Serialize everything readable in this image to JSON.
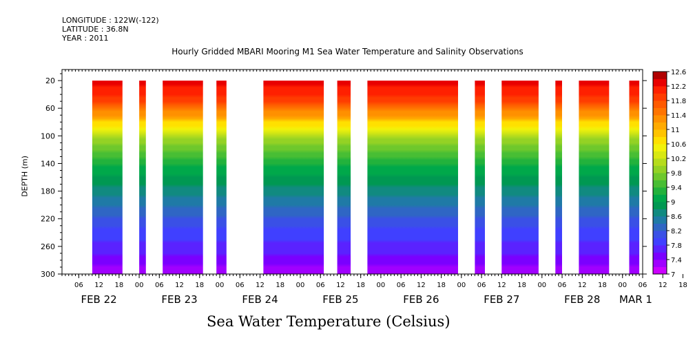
{
  "header": {
    "longitude": "LONGITUDE : 122W(-122)",
    "latitude": "LATITUDE : 36.8N",
    "year": "YEAR : 2011"
  },
  "chart_data": {
    "type": "heatmap",
    "title": "Hourly Gridded MBARI Mooring M1 Sea Water Temperature and Salinity Observations",
    "colorbar_label": "Sea Water Temperature (Celsius)",
    "ylabel": "DEPTH (m)",
    "y_axis": {
      "ticks": [
        20,
        60,
        100,
        140,
        180,
        220,
        260,
        300
      ],
      "range": [
        300,
        4
      ],
      "units": "m",
      "orientation": "depth increases downward"
    },
    "x_axis": {
      "start": "2011-02-22 01:00",
      "end": "2011-03-01 06:00",
      "hour_ticks": [
        "06",
        "12",
        "18",
        "00",
        "06",
        "12",
        "18",
        "00",
        "06",
        "12",
        "18",
        "00",
        "06",
        "12",
        "18",
        "00",
        "06",
        "12",
        "18",
        "00",
        "06",
        "12",
        "18",
        "00",
        "06",
        "12",
        "18",
        "00",
        "06",
        "12",
        "18",
        "00"
      ],
      "first_hour_tick": "2011-02-22 06:00",
      "day_labels": [
        "FEB 22",
        "FEB 23",
        "FEB 24",
        "FEB 25",
        "FEB 26",
        "FEB 27",
        "FEB 28",
        "MAR  1"
      ]
    },
    "data_segments": [
      {
        "start": "2011-02-22 10:00",
        "end": "2011-02-22 19:00"
      },
      {
        "start": "2011-02-23 00:00",
        "end": "2011-02-23 02:00"
      },
      {
        "start": "2011-02-23 07:00",
        "end": "2011-02-23 19:00"
      },
      {
        "start": "2011-02-23 23:00",
        "end": "2011-02-24 02:00"
      },
      {
        "start": "2011-02-24 13:00",
        "end": "2011-02-25 07:00"
      },
      {
        "start": "2011-02-25 11:00",
        "end": "2011-02-25 15:00"
      },
      {
        "start": "2011-02-25 20:00",
        "end": "2011-02-26 23:00"
      },
      {
        "start": "2011-02-27 04:00",
        "end": "2011-02-27 07:00"
      },
      {
        "start": "2011-02-27 12:00",
        "end": "2011-02-27 23:00"
      },
      {
        "start": "2011-02-28 04:00",
        "end": "2011-02-28 06:00"
      },
      {
        "start": "2011-02-28 11:00",
        "end": "2011-02-28 20:00"
      },
      {
        "start": "2011-03-01 02:00",
        "end": "2011-03-01 05:00"
      }
    ],
    "data_depth_range": [
      20,
      300
    ],
    "temperature_profile": [
      {
        "depth": 20,
        "temp": 12.3
      },
      {
        "depth": 50,
        "temp": 11.9
      },
      {
        "depth": 70,
        "temp": 11.2
      },
      {
        "depth": 85,
        "temp": 10.6
      },
      {
        "depth": 100,
        "temp": 10.0
      },
      {
        "depth": 130,
        "temp": 9.4
      },
      {
        "depth": 165,
        "temp": 8.9
      },
      {
        "depth": 200,
        "temp": 8.4
      },
      {
        "depth": 240,
        "temp": 7.9
      },
      {
        "depth": 280,
        "temp": 7.5
      },
      {
        "depth": 300,
        "temp": 7.2
      }
    ],
    "colorbar": {
      "levels": [
        7,
        7.2,
        7.4,
        7.6,
        7.8,
        8,
        8.2,
        8.4,
        8.6,
        8.8,
        9,
        9.2,
        9.4,
        9.6,
        9.8,
        10,
        10.2,
        10.4,
        10.6,
        10.8,
        11,
        11.2,
        11.4,
        11.6,
        11.8,
        12,
        12.2,
        12.4,
        12.6
      ],
      "tick_labels": [
        "12.6",
        "12.2",
        "11.8",
        "11.4",
        "11",
        "10.6",
        "10.2",
        "9.8",
        "9.4",
        "9",
        "8.6",
        "8.2",
        "7.8",
        "7.4",
        "7"
      ],
      "colors": [
        "#cc00ff",
        "#a000ff",
        "#7a00ff",
        "#5a22ff",
        "#4040ff",
        "#3a50e6",
        "#2f66c4",
        "#1f7aa6",
        "#118a80",
        "#009852",
        "#00a84a",
        "#22b23c",
        "#48be34",
        "#6ec82c",
        "#94d224",
        "#b6dc1c",
        "#d8e812",
        "#f2f20a",
        "#ffe000",
        "#ffc400",
        "#ffaa00",
        "#ff9000",
        "#ff7400",
        "#ff5a00",
        "#ff3c00",
        "#ff2000",
        "#e80000",
        "#b00000"
      ]
    }
  }
}
